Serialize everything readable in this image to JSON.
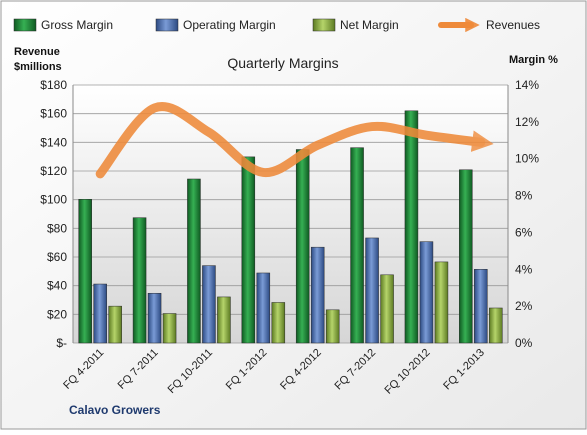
{
  "chart_data": {
    "type": "bar",
    "title": "Quarterly Margins",
    "footer_label": "Calavo Growers",
    "y_left_label_line1": "Revenue",
    "y_left_label_line2": "$millions",
    "y_right_label": "Margin %",
    "categories": [
      "FQ 4-2011",
      "FQ 7-2011",
      "FQ 10-2011",
      "FQ 1-2012",
      "FQ 4-2012",
      "FQ 7-2012",
      "FQ 10-2012",
      "FQ 1-2013"
    ],
    "y_left_range": [
      0,
      180
    ],
    "y_left_ticks": [
      "$-",
      "$20",
      "$40",
      "$60",
      "$80",
      "$100",
      "$120",
      "$140",
      "$160",
      "$180"
    ],
    "y_right_range": [
      0,
      14
    ],
    "y_right_ticks": [
      "0%",
      "2%",
      "4%",
      "6%",
      "8%",
      "10%",
      "12%",
      "14%"
    ],
    "series": [
      {
        "name": "Gross Margin",
        "axis": "right",
        "color": "#1e8c3c",
        "values": [
          7.8,
          6.8,
          8.9,
          10.1,
          10.5,
          10.6,
          12.6,
          9.4
        ]
      },
      {
        "name": "Operating Margin",
        "axis": "right",
        "color": "#4f74b8",
        "values": [
          3.2,
          2.7,
          4.2,
          3.8,
          5.2,
          5.7,
          5.5,
          4.0
        ]
      },
      {
        "name": "Net Margin",
        "axis": "right",
        "color": "#8fb24a",
        "values": [
          2.0,
          1.6,
          2.5,
          2.2,
          1.8,
          3.7,
          4.4,
          1.9
        ]
      },
      {
        "name": "Revenues",
        "axis": "left",
        "type": "line",
        "color": "#ee8a3a",
        "values": [
          118,
          164,
          147,
          119,
          138,
          151,
          145,
          140
        ]
      }
    ],
    "legend_position": "top",
    "grid": true
  }
}
